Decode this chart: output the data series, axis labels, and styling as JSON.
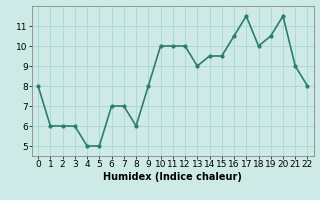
{
  "x": [
    0,
    1,
    2,
    3,
    4,
    5,
    6,
    7,
    8,
    9,
    10,
    11,
    12,
    13,
    14,
    15,
    16,
    17,
    18,
    19,
    20,
    21,
    22
  ],
  "y": [
    8,
    6,
    6,
    6,
    5,
    5,
    7,
    7,
    6,
    8,
    10,
    10,
    10,
    9,
    9.5,
    9.5,
    10.5,
    11.5,
    10,
    10.5,
    11.5,
    9,
    8
  ],
  "line_color": "#2d7d6f",
  "marker": "o",
  "marker_size": 2,
  "bg_color": "#ceeae7",
  "grid_color": "#b0d8d4",
  "xlabel": "Humidex (Indice chaleur)",
  "xlim": [
    -0.5,
    22.5
  ],
  "ylim": [
    4.5,
    12
  ],
  "yticks": [
    5,
    6,
    7,
    8,
    9,
    10,
    11
  ],
  "xticks": [
    0,
    1,
    2,
    3,
    4,
    5,
    6,
    7,
    8,
    9,
    10,
    11,
    12,
    13,
    14,
    15,
    16,
    17,
    18,
    19,
    20,
    21,
    22
  ],
  "xlabel_fontsize": 7,
  "tick_fontsize": 6.5,
  "linewidth": 1.2,
  "spine_color": "#888888"
}
